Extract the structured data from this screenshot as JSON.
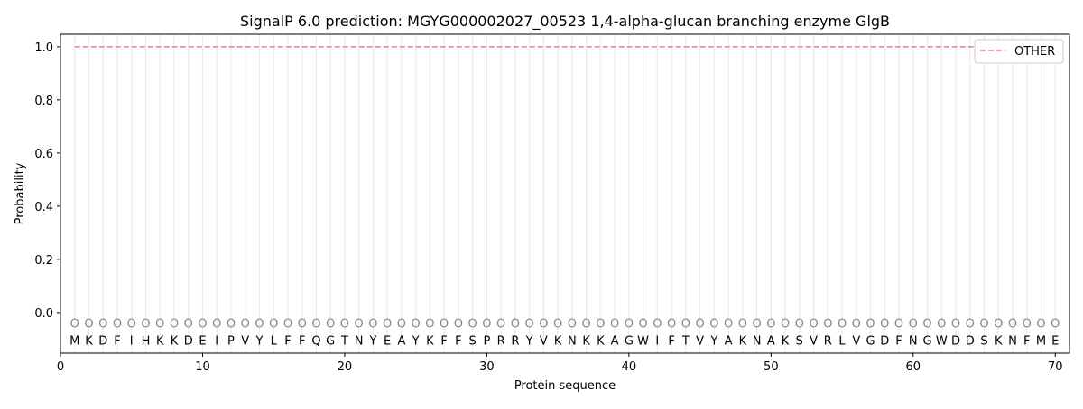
{
  "chart_data": {
    "type": "line",
    "title": "SignalP 6.0 prediction: MGYG000002027_00523 1,4-alpha-glucan branching enzyme GlgB",
    "xlabel": "Protein sequence",
    "ylabel": "Probability",
    "xlim": [
      0,
      71
    ],
    "ylim": [
      -0.153,
      1.047
    ],
    "xticks": [
      0,
      10,
      20,
      30,
      40,
      50,
      60,
      70
    ],
    "yticks": [
      "0.0",
      "0.2",
      "0.4",
      "0.6",
      "0.8",
      "1.0"
    ],
    "grid": "vertical lines at each residue",
    "legend_position": "top-right",
    "sequence": [
      "M",
      "K",
      "D",
      "F",
      "I",
      "H",
      "K",
      "K",
      "D",
      "E",
      "I",
      "P",
      "V",
      "Y",
      "L",
      "F",
      "F",
      "Q",
      "G",
      "T",
      "N",
      "Y",
      "E",
      "A",
      "Y",
      "K",
      "F",
      "F",
      "S",
      "P",
      "R",
      "R",
      "Y",
      "V",
      "K",
      "N",
      "K",
      "K",
      "A",
      "G",
      "W",
      "I",
      "F",
      "T",
      "V",
      "Y",
      "A",
      "K",
      "N",
      "A",
      "K",
      "S",
      "V",
      "R",
      "L",
      "V",
      "G",
      "D",
      "F",
      "N",
      "G",
      "W",
      "D",
      "D",
      "S",
      "K",
      "N",
      "F",
      "M",
      "E"
    ],
    "predicted_label_marker": "O",
    "series": [
      {
        "name": "OTHER",
        "color": "#f08080",
        "style": "dashed",
        "x_range": [
          1,
          70
        ],
        "value": 1.0
      }
    ]
  }
}
